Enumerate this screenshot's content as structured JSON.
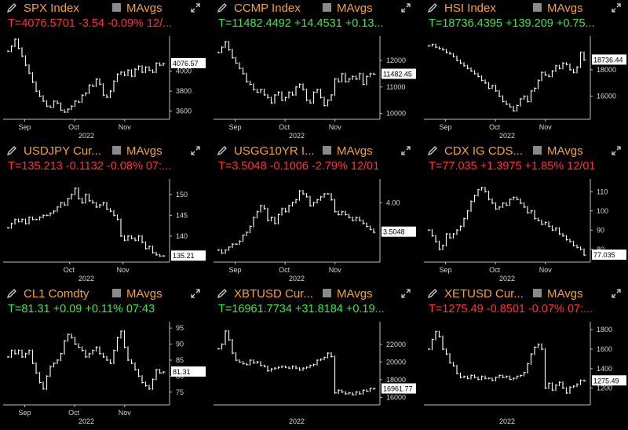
{
  "mavg_label": "MAvgs",
  "colors": {
    "up": "#49e24d",
    "down": "#ff3535",
    "accent": "#f7a13a"
  },
  "panels": [
    {
      "title": "SPX Index",
      "quote": "T=4076.5701 -3.54 -0.09% 12/...",
      "quote_color": "down",
      "last_tag": "4076.57",
      "y_ticks": [
        "4000",
        "3800",
        "3600"
      ],
      "x_ticks": [
        "Sep",
        "Oct",
        "Nov"
      ],
      "year": "2022",
      "y_range": [
        3550,
        4320
      ],
      "last": 4076.57,
      "icon": "pencil-icon",
      "path": [
        4200,
        4250,
        4320,
        4230,
        4150,
        4060,
        3980,
        3890,
        3800,
        3750,
        3700,
        3650,
        3640,
        3700,
        3680,
        3610,
        3590,
        3620,
        3650,
        3700,
        3690,
        3760,
        3780,
        3860,
        3850,
        3920,
        3870,
        3760,
        3740,
        3800,
        3900,
        3970,
        3990,
        3960,
        4010,
        3950,
        4020,
        4050,
        3990,
        4040,
        4010,
        3990,
        4080,
        4060,
        4076
      ]
    },
    {
      "title": "CCMP Index",
      "quote": "T=11482.4492 +14.4531 +0.13...",
      "quote_color": "up",
      "last_tag": "11482.45",
      "y_ticks": [
        "12000",
        "11000",
        "10000"
      ],
      "x_ticks": [
        "Sep",
        "Oct",
        "Nov"
      ],
      "year": "2022",
      "y_range": [
        9900,
        12800
      ],
      "last": 11482.45,
      "icon": "pencil-icon",
      "path": [
        12300,
        12500,
        12700,
        12400,
        12100,
        11900,
        11700,
        11500,
        11200,
        11100,
        10900,
        10800,
        10900,
        10700,
        10600,
        10400,
        10700,
        10800,
        10500,
        10600,
        10800,
        10700,
        11000,
        11100,
        10900,
        10500,
        10400,
        10800,
        10900,
        10600,
        10300,
        10500,
        10700,
        11300,
        11200,
        11500,
        11200,
        11300,
        11400,
        11300,
        11500,
        11100,
        11400,
        11500,
        11482
      ]
    },
    {
      "title": "HSI Index",
      "quote": "T=18736.4395 +139.209 +0.75...",
      "quote_color": "up",
      "last_tag": "18736.44",
      "y_ticks": [
        "18000",
        "16000"
      ],
      "x_ticks": [
        "Sep",
        "Oct",
        "Nov"
      ],
      "year": "2022",
      "y_range": [
        14500,
        20300
      ],
      "last": 18736.44,
      "icon": "pencil-icon",
      "path": [
        19800,
        19900,
        19700,
        19600,
        19500,
        19300,
        19200,
        19000,
        18700,
        18500,
        18300,
        18100,
        17900,
        17700,
        17500,
        17200,
        17000,
        16600,
        16800,
        16400,
        16000,
        15600,
        15400,
        15200,
        14900,
        15300,
        15800,
        16000,
        15600,
        16400,
        16600,
        17200,
        17800,
        17600,
        17500,
        17900,
        18300,
        18100,
        18500,
        18400,
        18000,
        17800,
        18200,
        19300,
        18736
      ]
    },
    {
      "title": "USDJPY Cur...",
      "quote": "T=135.213 -0.1132 -0.08% 07:...",
      "quote_color": "down",
      "last_tag": "135.21",
      "y_ticks": [
        "150",
        "145",
        "140"
      ],
      "x_ticks": [
        "Oct",
        "Nov"
      ],
      "year": "2022",
      "y_range": [
        134.5,
        153
      ],
      "last": 135.21,
      "icon": "pencil-icon",
      "path": [
        142,
        143,
        144,
        143.5,
        144,
        143,
        144.5,
        144,
        144,
        144.5,
        145,
        145,
        145.5,
        146,
        147,
        148,
        147.5,
        149,
        150,
        151.5,
        149,
        148,
        150,
        148.5,
        148,
        147,
        147.5,
        148,
        146.5,
        146,
        145,
        144,
        140,
        139,
        140,
        139.5,
        139,
        140,
        138.5,
        137,
        137.5,
        136,
        135.5,
        135.2,
        135.21
      ]
    },
    {
      "title": "USGG10YR I...",
      "quote": "T=3.5048 -0.1006 -2.79% 12/01",
      "quote_color": "down",
      "last_tag": "3.5048",
      "y_ticks": [
        "4.00"
      ],
      "x_ticks": [
        "Sep",
        "Oct",
        "Nov"
      ],
      "year": "2022",
      "y_range": [
        3.05,
        4.35
      ],
      "last": 3.5048,
      "icon": "pencil-icon",
      "path": [
        3.2,
        3.15,
        3.2,
        3.25,
        3.3,
        3.3,
        3.35,
        3.45,
        3.5,
        3.6,
        3.75,
        3.85,
        3.95,
        3.9,
        3.7,
        3.75,
        3.65,
        3.8,
        3.9,
        3.85,
        3.95,
        4.0,
        4.05,
        4.2,
        4.15,
        4.1,
        3.95,
        4.0,
        4.05,
        4.1,
        4.15,
        4.15,
        4.05,
        3.85,
        3.8,
        3.85,
        3.8,
        3.75,
        3.7,
        3.75,
        3.7,
        3.65,
        3.6,
        3.55,
        3.5
      ]
    },
    {
      "title": "CDX IG CDS...",
      "quote": "T=77.035 +1.3975 +1.85% 12/01",
      "quote_color": "down",
      "last_tag": "77.035",
      "y_ticks": [
        "110",
        "100",
        "90",
        "80"
      ],
      "x_ticks": [
        "Sep",
        "Oct",
        "Nov"
      ],
      "year": "2022",
      "y_range": [
        75,
        115
      ],
      "last": 77.035,
      "icon": "pencil-icon",
      "path": [
        90,
        87,
        84,
        80,
        82,
        88,
        86,
        88,
        90,
        92,
        96,
        100,
        105,
        108,
        111,
        112,
        110,
        106,
        104,
        101,
        102,
        104,
        103,
        106,
        107,
        106,
        104,
        102,
        99,
        100,
        96,
        95,
        93,
        94,
        92,
        90,
        91,
        88,
        87,
        85,
        84,
        82,
        81,
        80,
        77
      ]
    },
    {
      "title": "CL1 Comdty",
      "quote": "T=81.31 +0.09 +0.11% 07:43",
      "quote_color": "up",
      "last_tag": "81.31",
      "y_ticks": [
        "95",
        "90",
        "85",
        "80",
        "75"
      ],
      "x_ticks": [
        "Sep",
        "Oct",
        "Nov"
      ],
      "year": "2022",
      "y_range": [
        72,
        96
      ],
      "last": 81.31,
      "icon": "pencil-icon",
      "path": [
        86,
        88,
        87,
        88,
        86,
        87,
        88,
        84,
        81,
        78,
        76,
        80,
        83,
        84,
        85,
        87,
        91,
        93,
        92,
        90,
        89,
        88,
        86,
        87,
        88,
        89,
        87,
        86,
        85,
        84,
        88,
        92,
        94,
        89,
        85,
        84,
        82,
        80,
        78,
        77,
        76,
        79,
        82,
        81,
        81.3
      ]
    },
    {
      "title": "XBTUSD Cur...",
      "quote": "T=16961.7734 +31.8184 +0.19...",
      "quote_color": "up",
      "last_tag": "16961.77",
      "y_ticks": [
        "22000",
        "20000",
        "18000",
        "16000"
      ],
      "x_ticks": [],
      "year": "2022",
      "y_range": [
        15500,
        24200
      ],
      "last": 16961.77,
      "icon": "pencil-icon",
      "path": [
        21500,
        22000,
        23500,
        22500,
        21000,
        20200,
        20000,
        19800,
        19700,
        20200,
        19900,
        20000,
        19600,
        19500,
        19000,
        19200,
        19300,
        19400,
        19500,
        19400,
        19300,
        19500,
        19300,
        19100,
        19300,
        19400,
        19600,
        19700,
        20200,
        20300,
        20500,
        21000,
        20600,
        16500,
        16800,
        16600,
        16400,
        16500,
        16300,
        16600,
        16400,
        16800,
        16700,
        17000,
        16961
      ]
    },
    {
      "title": "XETUSD Cur...",
      "quote": "T=1275.49 -0.8501 -0.07% 07:...",
      "quote_color": "down",
      "last_tag": "1275.49",
      "y_ticks": [
        "1800",
        "1600",
        "1400",
        "1200"
      ],
      "x_ticks": [],
      "year": "2022",
      "y_range": [
        1060,
        1850
      ],
      "last": 1275.49,
      "icon": "pencil-icon",
      "path": [
        1600,
        1700,
        1780,
        1730,
        1600,
        1550,
        1460,
        1430,
        1350,
        1310,
        1320,
        1300,
        1330,
        1310,
        1290,
        1320,
        1300,
        1300,
        1280,
        1310,
        1330,
        1310,
        1320,
        1290,
        1300,
        1320,
        1330,
        1360,
        1450,
        1550,
        1620,
        1650,
        1600,
        1200,
        1250,
        1180,
        1230,
        1260,
        1200,
        1150,
        1210,
        1220,
        1240,
        1280,
        1275
      ]
    }
  ]
}
